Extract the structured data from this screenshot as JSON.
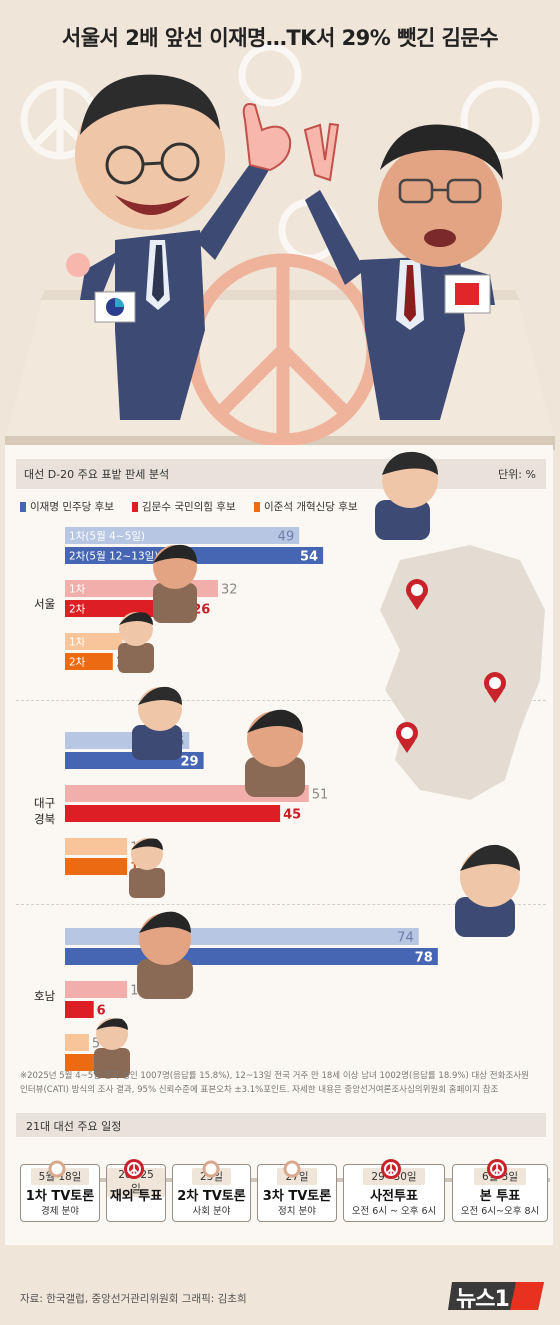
{
  "headline": "서울서 2배 앞선 이재명…TK서 29% 뺏긴 김문수",
  "chart": {
    "title": "대선 D-20 주요 표밭 판세 분석",
    "unit": "단위: %"
  },
  "colors": {
    "lee_wave1": "#b7c6e3",
    "lee_wave2": "#4666b4",
    "kim_wave1": "#f2aeaa",
    "kim_wave2": "#dd1f25",
    "jun_wave1": "#f8c59a",
    "jun_wave2": "#ec6b12"
  },
  "chart_data": {
    "type": "bar",
    "orientation": "horizontal",
    "title": "대선 D-20 주요 표밭 판세 분석",
    "unit": "%",
    "series": [
      {
        "name": "이재명 민주당 후보"
      },
      {
        "name": "김문수 국민의힘 후보"
      },
      {
        "name": "이준석 개혁신당 후보"
      }
    ],
    "wave_labels": {
      "first": "1차",
      "second": "2차",
      "first_long": "1차(5월 4~5일)",
      "second_long": "2차(5월 12~13일)"
    },
    "regions": [
      {
        "name": "서울",
        "label_lines": [
          "서울"
        ],
        "values": {
          "lee": [
            49,
            54
          ],
          "kim": [
            32,
            26
          ],
          "jun": [
            12,
            10
          ]
        }
      },
      {
        "name": "대구경북",
        "label_lines": [
          "대구",
          "경북"
        ],
        "values": {
          "lee": [
            26,
            29
          ],
          "kim": [
            51,
            45
          ],
          "jun": [
            13,
            13
          ]
        }
      },
      {
        "name": "호남",
        "label_lines": [
          "호남"
        ],
        "values": {
          "lee": [
            74,
            78
          ],
          "kim": [
            13,
            6
          ],
          "jun": [
            5,
            7
          ]
        }
      }
    ]
  },
  "note": {
    "line1": "※2025년 5월 4~5일 전국 성인 1007명(응답률 15.8%), 12~13일 전국 거주 만 18세 이상 남녀 1002명(응답률 18.9%) 대상 전화조사원",
    "line2": "인터뷰(CATI) 방식의 조사 결과, 95% 신뢰수준에 표본오차 ±3.1%포인트. 자세한 내용은 중앙선거여론조사심의위원회 홈페이지 참조"
  },
  "schedule": {
    "title": "21대 대선 주요 일정",
    "events": [
      {
        "date": "5월 18일",
        "event": "1차 TV토론",
        "sub": "경제 분야",
        "marker": "ring"
      },
      {
        "date": "20~25일",
        "event": "재외 투표",
        "sub": "",
        "marker": "stamp"
      },
      {
        "date": "23일",
        "event": "2차 TV토론",
        "sub": "사회 분야",
        "marker": "ring"
      },
      {
        "date": "27일",
        "event": "3차 TV토론",
        "sub": "정치 분야",
        "marker": "ring"
      },
      {
        "date": "29~30일",
        "event": "사전투표",
        "sub": "오전 6시 ~ 오후 6시",
        "marker": "stamp"
      },
      {
        "date": "6월 3일",
        "event": "본 투표",
        "sub": "오전 6시~오후 8시",
        "marker": "stamp"
      }
    ]
  },
  "source": "자료: 한국갤럽, 중앙선거관리위원회   그래픽: 김초희",
  "logo": "뉴스1"
}
